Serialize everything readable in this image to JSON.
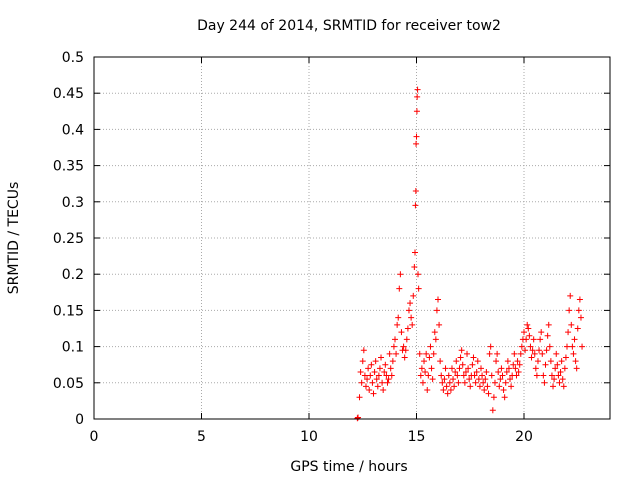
{
  "chart_data": {
    "type": "scatter",
    "title": "Day 244 of 2014, SRMTID for receiver tow2",
    "xlabel": "GPS time / hours",
    "ylabel": "SRMTID / TECUs",
    "xlim": [
      0,
      24
    ],
    "ylim": [
      0,
      0.5
    ],
    "x_ticks": [
      0,
      5,
      10,
      15,
      20
    ],
    "x_tick_labels": [
      "0",
      "5",
      "10",
      "15",
      "20"
    ],
    "y_ticks": [
      0,
      0.05,
      0.1,
      0.15,
      0.2,
      0.25,
      0.3,
      0.35,
      0.4,
      0.45,
      0.5
    ],
    "y_tick_labels": [
      "0",
      "0.05",
      "0.1",
      "0.15",
      "0.2",
      "0.25",
      "0.3",
      "0.35",
      "0.4",
      "0.45",
      "0.5"
    ],
    "grid": true,
    "marker": "+",
    "color": "#ff0000",
    "series": [
      {
        "name": "SRMTID",
        "points": [
          [
            12.25,
            0.001
          ],
          [
            12.28,
            0.002
          ],
          [
            12.35,
            0.03
          ],
          [
            12.4,
            0.065
          ],
          [
            12.45,
            0.05
          ],
          [
            12.5,
            0.08
          ],
          [
            12.55,
            0.095
          ],
          [
            12.6,
            0.06
          ],
          [
            12.65,
            0.045
          ],
          [
            12.7,
            0.055
          ],
          [
            12.75,
            0.07
          ],
          [
            12.8,
            0.04
          ],
          [
            12.85,
            0.06
          ],
          [
            12.9,
            0.075
          ],
          [
            12.95,
            0.05
          ],
          [
            13.0,
            0.035
          ],
          [
            13.05,
            0.065
          ],
          [
            13.1,
            0.08
          ],
          [
            13.15,
            0.055
          ],
          [
            13.2,
            0.045
          ],
          [
            13.25,
            0.06
          ],
          [
            13.3,
            0.07
          ],
          [
            13.35,
            0.085
          ],
          [
            13.4,
            0.05
          ],
          [
            13.45,
            0.04
          ],
          [
            13.5,
            0.065
          ],
          [
            13.55,
            0.075
          ],
          [
            13.6,
            0.06
          ],
          [
            13.65,
            0.05
          ],
          [
            13.7,
            0.055
          ],
          [
            13.75,
            0.09
          ],
          [
            13.8,
            0.07
          ],
          [
            13.85,
            0.06
          ],
          [
            13.9,
            0.08
          ],
          [
            13.95,
            0.1
          ],
          [
            14.0,
            0.11
          ],
          [
            14.05,
            0.09
          ],
          [
            14.1,
            0.13
          ],
          [
            14.15,
            0.14
          ],
          [
            14.2,
            0.18
          ],
          [
            14.25,
            0.2
          ],
          [
            14.3,
            0.12
          ],
          [
            14.35,
            0.095
          ],
          [
            14.4,
            0.1
          ],
          [
            14.45,
            0.085
          ],
          [
            14.5,
            0.095
          ],
          [
            14.55,
            0.11
          ],
          [
            14.6,
            0.125
          ],
          [
            14.65,
            0.15
          ],
          [
            14.7,
            0.16
          ],
          [
            14.75,
            0.14
          ],
          [
            14.8,
            0.13
          ],
          [
            14.85,
            0.17
          ],
          [
            14.9,
            0.21
          ],
          [
            14.93,
            0.23
          ],
          [
            14.95,
            0.295
          ],
          [
            14.97,
            0.315
          ],
          [
            14.98,
            0.38
          ],
          [
            15.0,
            0.39
          ],
          [
            15.02,
            0.425
          ],
          [
            15.03,
            0.445
          ],
          [
            15.05,
            0.455
          ],
          [
            15.07,
            0.2
          ],
          [
            15.1,
            0.18
          ],
          [
            15.15,
            0.09
          ],
          [
            15.2,
            0.06
          ],
          [
            15.25,
            0.07
          ],
          [
            15.3,
            0.05
          ],
          [
            15.35,
            0.08
          ],
          [
            15.4,
            0.065
          ],
          [
            15.45,
            0.09
          ],
          [
            15.5,
            0.04
          ],
          [
            15.55,
            0.06
          ],
          [
            15.6,
            0.085
          ],
          [
            15.65,
            0.1
          ],
          [
            15.7,
            0.07
          ],
          [
            15.75,
            0.055
          ],
          [
            15.8,
            0.09
          ],
          [
            15.85,
            0.12
          ],
          [
            15.9,
            0.11
          ],
          [
            15.95,
            0.15
          ],
          [
            16.0,
            0.165
          ],
          [
            16.05,
            0.13
          ],
          [
            16.1,
            0.08
          ],
          [
            16.15,
            0.06
          ],
          [
            16.2,
            0.05
          ],
          [
            16.25,
            0.04
          ],
          [
            16.3,
            0.055
          ],
          [
            16.35,
            0.07
          ],
          [
            16.4,
            0.045
          ],
          [
            16.45,
            0.035
          ],
          [
            16.5,
            0.06
          ],
          [
            16.55,
            0.05
          ],
          [
            16.6,
            0.04
          ],
          [
            16.65,
            0.07
          ],
          [
            16.7,
            0.055
          ],
          [
            16.75,
            0.045
          ],
          [
            16.8,
            0.065
          ],
          [
            16.85,
            0.08
          ],
          [
            16.9,
            0.06
          ],
          [
            16.95,
            0.05
          ],
          [
            17.0,
            0.07
          ],
          [
            17.05,
            0.085
          ],
          [
            17.1,
            0.095
          ],
          [
            17.15,
            0.075
          ],
          [
            17.2,
            0.06
          ],
          [
            17.25,
            0.05
          ],
          [
            17.3,
            0.065
          ],
          [
            17.35,
            0.09
          ],
          [
            17.4,
            0.07
          ],
          [
            17.45,
            0.055
          ],
          [
            17.5,
            0.045
          ],
          [
            17.55,
            0.06
          ],
          [
            17.6,
            0.075
          ],
          [
            17.65,
            0.085
          ],
          [
            17.7,
            0.06
          ],
          [
            17.75,
            0.05
          ],
          [
            17.8,
            0.065
          ],
          [
            17.85,
            0.08
          ],
          [
            17.9,
            0.055
          ],
          [
            17.95,
            0.045
          ],
          [
            18.0,
            0.07
          ],
          [
            18.05,
            0.06
          ],
          [
            18.1,
            0.05
          ],
          [
            18.15,
            0.04
          ],
          [
            18.2,
            0.055
          ],
          [
            18.25,
            0.065
          ],
          [
            18.3,
            0.045
          ],
          [
            18.35,
            0.035
          ],
          [
            18.4,
            0.09
          ],
          [
            18.45,
            0.1
          ],
          [
            18.5,
            0.06
          ],
          [
            18.55,
            0.012
          ],
          [
            18.6,
            0.03
          ],
          [
            18.65,
            0.05
          ],
          [
            18.7,
            0.08
          ],
          [
            18.75,
            0.09
          ],
          [
            18.8,
            0.065
          ],
          [
            18.85,
            0.045
          ],
          [
            18.9,
            0.055
          ],
          [
            18.95,
            0.07
          ],
          [
            19.0,
            0.06
          ],
          [
            19.05,
            0.04
          ],
          [
            19.1,
            0.03
          ],
          [
            19.15,
            0.05
          ],
          [
            19.2,
            0.065
          ],
          [
            19.25,
            0.08
          ],
          [
            19.3,
            0.07
          ],
          [
            19.35,
            0.055
          ],
          [
            19.4,
            0.045
          ],
          [
            19.45,
            0.06
          ],
          [
            19.5,
            0.075
          ],
          [
            19.55,
            0.09
          ],
          [
            19.6,
            0.07
          ],
          [
            19.65,
            0.06
          ],
          [
            19.7,
            0.08
          ],
          [
            19.75,
            0.065
          ],
          [
            19.8,
            0.075
          ],
          [
            19.85,
            0.09
          ],
          [
            19.9,
            0.1
          ],
          [
            19.95,
            0.11
          ],
          [
            20.0,
            0.12
          ],
          [
            20.05,
            0.095
          ],
          [
            20.1,
            0.11
          ],
          [
            20.15,
            0.13
          ],
          [
            20.2,
            0.125
          ],
          [
            20.25,
            0.115
          ],
          [
            20.3,
            0.1
          ],
          [
            20.35,
            0.085
          ],
          [
            20.4,
            0.095
          ],
          [
            20.45,
            0.11
          ],
          [
            20.5,
            0.09
          ],
          [
            20.55,
            0.07
          ],
          [
            20.6,
            0.06
          ],
          [
            20.65,
            0.08
          ],
          [
            20.7,
            0.095
          ],
          [
            20.75,
            0.11
          ],
          [
            20.8,
            0.12
          ],
          [
            20.85,
            0.09
          ],
          [
            20.9,
            0.06
          ],
          [
            20.95,
            0.05
          ],
          [
            21.0,
            0.075
          ],
          [
            21.05,
            0.095
          ],
          [
            21.1,
            0.115
          ],
          [
            21.15,
            0.13
          ],
          [
            21.2,
            0.1
          ],
          [
            21.25,
            0.08
          ],
          [
            21.3,
            0.06
          ],
          [
            21.35,
            0.045
          ],
          [
            21.4,
            0.055
          ],
          [
            21.45,
            0.07
          ],
          [
            21.5,
            0.09
          ],
          [
            21.55,
            0.075
          ],
          [
            21.6,
            0.06
          ],
          [
            21.65,
            0.05
          ],
          [
            21.7,
            0.065
          ],
          [
            21.75,
            0.08
          ],
          [
            21.8,
            0.055
          ],
          [
            21.85,
            0.045
          ],
          [
            21.9,
            0.07
          ],
          [
            21.95,
            0.085
          ],
          [
            22.0,
            0.1
          ],
          [
            22.05,
            0.12
          ],
          [
            22.1,
            0.15
          ],
          [
            22.15,
            0.17
          ],
          [
            22.2,
            0.13
          ],
          [
            22.25,
            0.1
          ],
          [
            22.3,
            0.09
          ],
          [
            22.35,
            0.11
          ],
          [
            22.4,
            0.08
          ],
          [
            22.45,
            0.07
          ],
          [
            22.5,
            0.125
          ],
          [
            22.55,
            0.15
          ],
          [
            22.6,
            0.165
          ],
          [
            22.65,
            0.14
          ],
          [
            22.7,
            0.1
          ]
        ]
      }
    ]
  }
}
